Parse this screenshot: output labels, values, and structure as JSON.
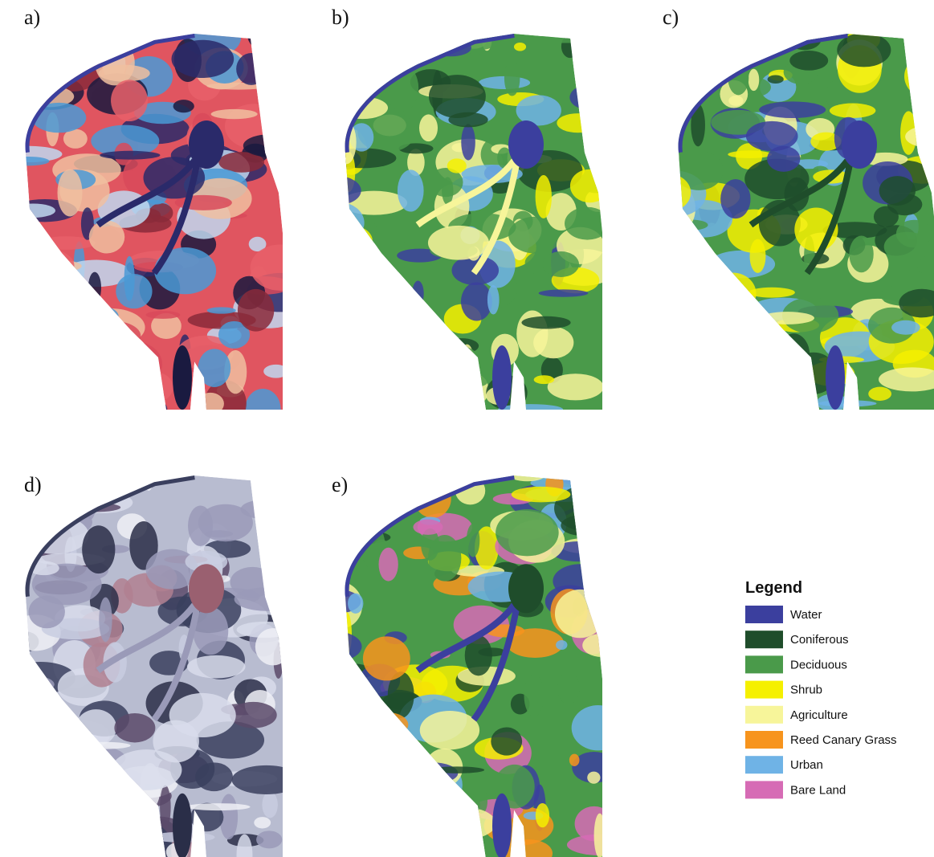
{
  "panels": [
    {
      "label": "a)"
    },
    {
      "label": "b)"
    },
    {
      "label": "c)"
    },
    {
      "label": "d)"
    },
    {
      "label": "e)"
    }
  ],
  "legend": {
    "title": "Legend",
    "items": [
      {
        "name": "Water",
        "color": "#3b3f9e"
      },
      {
        "name": "Coniferous",
        "color": "#1f4d2b"
      },
      {
        "name": "Deciduous",
        "color": "#4a9a4a"
      },
      {
        "name": "Shrub",
        "color": "#f5f000"
      },
      {
        "name": "Agriculture",
        "color": "#f7f59a"
      },
      {
        "name": "Reed Canary Grass",
        "color": "#f7941d"
      },
      {
        "name": "Urban",
        "color": "#6fb3e6"
      },
      {
        "name": "Bare Land",
        "color": "#d66bb5"
      }
    ]
  }
}
